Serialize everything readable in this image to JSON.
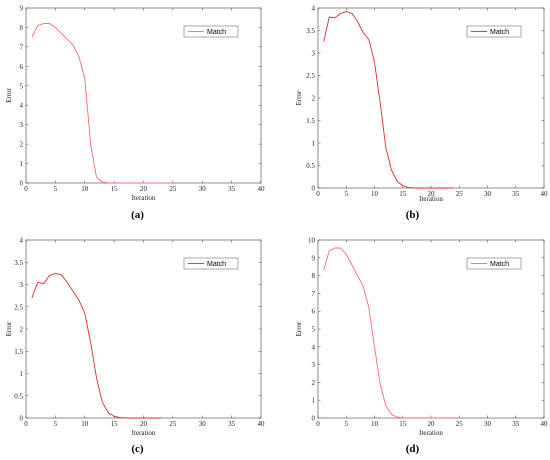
{
  "chart_data": [
    {
      "type": "line",
      "caption": "(a)",
      "xlabel": "Iteration",
      "ylabel": "Error",
      "xlim": [
        0,
        40
      ],
      "ylim": [
        0,
        9
      ],
      "xticks": [
        0,
        5,
        10,
        15,
        20,
        25,
        30,
        35,
        40
      ],
      "yticks": [
        0,
        1,
        2,
        3,
        4,
        5,
        6,
        7,
        8,
        9
      ],
      "legend_position": "top-right",
      "series": [
        {
          "name": "Match",
          "color": "#f26d6d",
          "x": [
            1,
            2,
            3,
            4,
            5,
            6,
            7,
            8,
            9,
            10,
            11,
            12,
            13,
            14,
            15,
            16,
            17,
            18,
            19,
            20,
            21,
            22,
            23,
            24,
            25
          ],
          "y": [
            7.5,
            8.1,
            8.2,
            8.2,
            8.0,
            7.7,
            7.4,
            7.1,
            6.5,
            5.4,
            2.0,
            0.3,
            0.05,
            0.0,
            0.0,
            0.0,
            0.0,
            0.0,
            0.0,
            0.0,
            0.0,
            0.0,
            0.0,
            0.0,
            0.0
          ]
        }
      ]
    },
    {
      "type": "line",
      "caption": "(b)",
      "xlabel": "Iteration",
      "ylabel": "Error",
      "xlim": [
        0,
        40
      ],
      "ylim": [
        0,
        4
      ],
      "xticks": [
        0,
        5,
        10,
        15,
        20,
        25,
        30,
        35,
        40
      ],
      "yticks": [
        0,
        0.5,
        1,
        1.5,
        2,
        2.5,
        3,
        3.5,
        4
      ],
      "legend_position": "top-right",
      "series": [
        {
          "name": "Match",
          "color": "#d92b2b",
          "x": [
            1,
            2,
            3,
            4,
            5,
            6,
            7,
            8,
            9,
            10,
            11,
            12,
            13,
            14,
            15,
            16,
            17,
            18,
            19,
            20,
            21,
            22,
            23,
            24
          ],
          "y": [
            3.25,
            3.8,
            3.78,
            3.88,
            3.92,
            3.88,
            3.7,
            3.45,
            3.3,
            2.8,
            1.9,
            0.9,
            0.4,
            0.15,
            0.05,
            0.01,
            0.0,
            0.0,
            0.0,
            0.0,
            0.0,
            0.0,
            0.0,
            0.0
          ]
        }
      ]
    },
    {
      "type": "line",
      "caption": "(c)",
      "xlabel": "Iteration",
      "ylabel": "Error",
      "xlim": [
        0,
        40
      ],
      "ylim": [
        0,
        4
      ],
      "xticks": [
        0,
        5,
        10,
        15,
        20,
        25,
        30,
        35,
        40
      ],
      "yticks": [
        0,
        0.5,
        1,
        1.5,
        2,
        2.5,
        3,
        3.5,
        4
      ],
      "legend_position": "top-right",
      "series": [
        {
          "name": "Match",
          "color": "#d92b2b",
          "x": [
            1,
            2,
            3,
            4,
            5,
            6,
            7,
            8,
            9,
            10,
            11,
            12,
            13,
            14,
            15,
            16,
            17,
            18,
            19,
            20,
            21,
            22,
            23
          ],
          "y": [
            2.7,
            3.05,
            3.02,
            3.2,
            3.25,
            3.22,
            3.05,
            2.85,
            2.65,
            2.35,
            1.7,
            0.9,
            0.35,
            0.12,
            0.04,
            0.01,
            0.0,
            0.0,
            0.0,
            0.0,
            0.0,
            0.0,
            0.0
          ]
        }
      ]
    },
    {
      "type": "line",
      "caption": "(d)",
      "xlabel": "Iteration",
      "ylabel": "Error",
      "xlim": [
        0,
        40
      ],
      "ylim": [
        0,
        10
      ],
      "xticks": [
        0,
        5,
        10,
        15,
        20,
        25,
        30,
        35,
        40
      ],
      "yticks": [
        0,
        1,
        2,
        3,
        4,
        5,
        6,
        7,
        8,
        9,
        10
      ],
      "legend_position": "top-right",
      "series": [
        {
          "name": "Match",
          "color": "#f26d6d",
          "x": [
            1,
            2,
            3,
            4,
            5,
            6,
            7,
            8,
            9,
            10,
            11,
            12,
            13,
            14,
            15,
            16,
            17,
            18,
            19,
            20,
            21,
            22,
            23,
            24,
            25
          ],
          "y": [
            8.3,
            9.4,
            9.55,
            9.55,
            9.2,
            8.6,
            8.0,
            7.4,
            6.2,
            4.0,
            1.9,
            0.7,
            0.2,
            0.05,
            0.0,
            0.0,
            0.0,
            0.0,
            0.0,
            0.0,
            0.0,
            0.0,
            0.0,
            0.0,
            0.0
          ]
        }
      ]
    }
  ]
}
